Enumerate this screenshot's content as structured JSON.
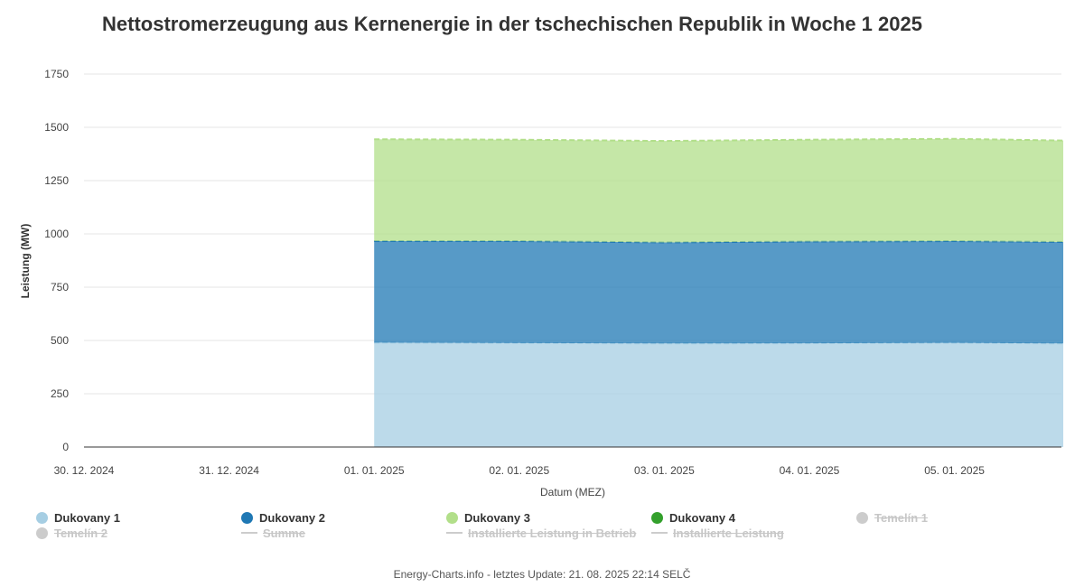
{
  "title": "Nettostromerzeugung aus Kernenergie in der tschechischen Republik in Woche 1 2025",
  "footer": "Energy-Charts.info - letztes Update: 21. 08. 2025 22:14 SELČ",
  "legend": [
    {
      "label": "Dukovany 1",
      "marker": "dot",
      "color": "#a6cee3",
      "visible": true
    },
    {
      "label": "Dukovany 2",
      "marker": "dot",
      "color": "#1f78b4",
      "visible": true
    },
    {
      "label": "Dukovany 3",
      "marker": "dot",
      "color": "#b2df8a",
      "visible": true
    },
    {
      "label": "Dukovany 4",
      "marker": "dot",
      "color": "#33a02c",
      "visible": true
    },
    {
      "label": "Temelín 1",
      "marker": "dot",
      "color": "#cccccc",
      "visible": false
    },
    {
      "label": "Temelín 2",
      "marker": "dot",
      "color": "#cccccc",
      "visible": false
    },
    {
      "label": "Summe",
      "marker": "line",
      "color": "#cccccc",
      "visible": false
    },
    {
      "label": "Installierte Leistung in Betrieb",
      "marker": "line",
      "color": "#cccccc",
      "visible": false
    },
    {
      "label": "Installierte Leistung",
      "marker": "line",
      "color": "#cccccc",
      "visible": false
    }
  ],
  "chart_data": {
    "type": "area",
    "stacked": true,
    "title": "Nettostromerzeugung aus Kernenergie in der tschechischen Republik in Woche 1 2025",
    "xlabel": "Datum (MEZ)",
    "ylabel": "Leistung (MW)",
    "ylim": [
      0,
      1750
    ],
    "yticks": [
      0,
      250,
      500,
      750,
      1000,
      1250,
      1500,
      1750
    ],
    "xticks": [
      "30. 12. 2024",
      "31. 12. 2024",
      "01. 01. 2025",
      "02. 01. 2025",
      "03. 01. 2025",
      "04. 01. 2025",
      "05. 01. 2025"
    ],
    "x_days": [
      "2024-12-30",
      "2024-12-31",
      "2025-01-01",
      "2025-01-02",
      "2025-01-03",
      "2025-01-04",
      "2025-01-05",
      "2025-01-05 18:00"
    ],
    "grid": true,
    "legend_position": "bottom",
    "series": [
      {
        "name": "Dukovany 1",
        "color": "#a6cee3",
        "values": [
          0,
          0,
          490,
          488,
          486,
          487,
          489,
          486
        ]
      },
      {
        "name": "Dukovany 2",
        "color": "#1f78b4",
        "values": [
          0,
          0,
          476,
          478,
          474,
          477,
          477,
          476
        ]
      },
      {
        "name": "Dukovany 3",
        "color": "#b2df8a",
        "values": [
          0,
          0,
          478,
          476,
          476,
          478,
          480,
          476
        ]
      },
      {
        "name": "Dukovany 4",
        "color": "#33a02c",
        "values": [
          0,
          0,
          0,
          0,
          0,
          0,
          0,
          0
        ]
      }
    ]
  }
}
